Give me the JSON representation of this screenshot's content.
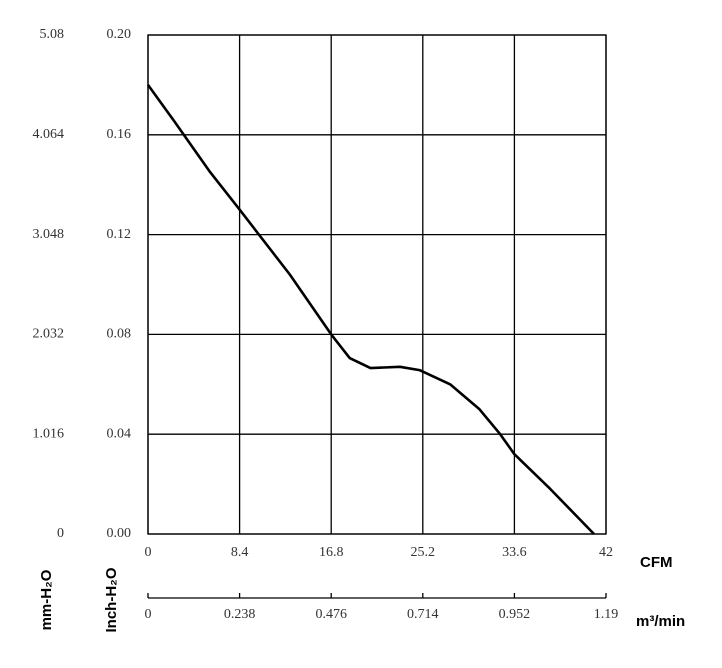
{
  "chart_data": {
    "type": "line",
    "x_label": "CFM",
    "x2_label": "m³/min",
    "y_label": "Inch-H₂O",
    "y2_label": "mm-H₂O",
    "x": [
      0,
      2.48,
      5.7,
      8.4,
      13.0,
      16.8,
      18.5,
      20.4,
      23.1,
      24.9,
      27.7,
      30.4,
      32.3,
      33.6,
      36.9,
      40.9
    ],
    "series": [
      {
        "name": "Inch-H₂O",
        "color": "#000000",
        "values": [
          0.18,
          0.165,
          0.145,
          0.13,
          0.104,
          0.08,
          0.0705,
          0.0665,
          0.067,
          0.0657,
          0.06,
          0.05,
          0.04,
          0.032,
          0.018,
          0
        ]
      }
    ],
    "xlim": [
      0,
      42
    ],
    "xticks": [
      0,
      8.4,
      16.8,
      25.2,
      33.6,
      42
    ],
    "x2lim": [
      0,
      1.19
    ],
    "x2ticks": [
      0,
      0.238,
      0.476,
      0.714,
      0.952,
      1.19
    ],
    "ylim": [
      0,
      0.2
    ],
    "yticks": [
      {
        "value": 0,
        "label": "0.00"
      },
      0.04,
      0.08,
      0.12,
      0.16,
      {
        "value": 0.2,
        "label": "0.20"
      }
    ],
    "y2lim": [
      0,
      5.08
    ],
    "y2ticks": [
      0,
      1.016,
      2.032,
      3.048,
      4.064,
      5.08
    ],
    "grid": true
  }
}
